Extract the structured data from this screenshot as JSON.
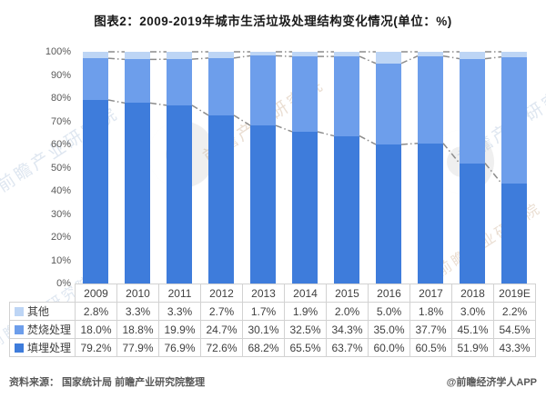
{
  "title": "图表2：2009-2019年城市生活垃圾处理结构变化情况(单位：%)",
  "chart_data": {
    "type": "bar",
    "stacked": true,
    "unit": "%",
    "title": "图表2：2009-2019年城市生活垃圾处理结构变化情况(单位：%)",
    "categories": [
      "2009",
      "2010",
      "2011",
      "2012",
      "2013",
      "2014",
      "2015",
      "2016",
      "2017",
      "2018",
      "2019E"
    ],
    "series": [
      {
        "name": "填埋处理",
        "color": "#3e7cdb",
        "values": [
          79.2,
          77.9,
          76.9,
          72.6,
          68.2,
          65.5,
          63.7,
          60.0,
          60.5,
          51.9,
          43.3
        ]
      },
      {
        "name": "焚烧处理",
        "color": "#6d9eeb",
        "values": [
          18.0,
          18.8,
          19.9,
          24.7,
          30.1,
          32.5,
          34.3,
          35.0,
          37.7,
          45.1,
          54.5
        ]
      },
      {
        "name": "其他",
        "color": "#bdd5f5",
        "values": [
          2.8,
          3.3,
          3.3,
          2.7,
          1.7,
          1.9,
          2.0,
          5.0,
          1.8,
          3.0,
          2.2
        ]
      }
    ],
    "ylim": [
      0,
      100
    ],
    "y_ticks": [
      "100%",
      "90%",
      "80%",
      "70%",
      "60%",
      "50%",
      "40%",
      "30%",
      "20%",
      "10%",
      "0%"
    ],
    "grid": false,
    "connector_lines": {
      "style": "dash-dot",
      "color": "#8c8c8c"
    },
    "legend_position": "table-left"
  },
  "table": {
    "header": [
      "2009",
      "2010",
      "2011",
      "2012",
      "2013",
      "2014",
      "2015",
      "2016",
      "2017",
      "2018",
      "2019E"
    ],
    "rows": [
      {
        "label": "其他",
        "swatch": "#bdd5f5",
        "values": [
          "2.8%",
          "3.3%",
          "3.3%",
          "2.7%",
          "1.7%",
          "1.9%",
          "2.0%",
          "5.0%",
          "1.8%",
          "3.0%",
          "2.2%"
        ]
      },
      {
        "label": "焚烧处理",
        "swatch": "#6d9eeb",
        "values": [
          "18.0%",
          "18.8%",
          "19.9%",
          "24.7%",
          "30.1%",
          "32.5%",
          "34.3%",
          "35.0%",
          "37.7%",
          "45.1%",
          "54.5%"
        ]
      },
      {
        "label": "填埋处理",
        "swatch": "#3e7cdb",
        "values": [
          "79.2%",
          "77.9%",
          "76.9%",
          "72.6%",
          "68.2%",
          "65.5%",
          "63.7%",
          "60.0%",
          "60.5%",
          "51.9%",
          "43.3%"
        ]
      }
    ]
  },
  "footer": {
    "source": "资料来源： 国家统计局 前瞻产业研究院整理",
    "credit": "@前瞻经济学人APP"
  },
  "watermark": {
    "text": "前瞻产业研究院"
  }
}
